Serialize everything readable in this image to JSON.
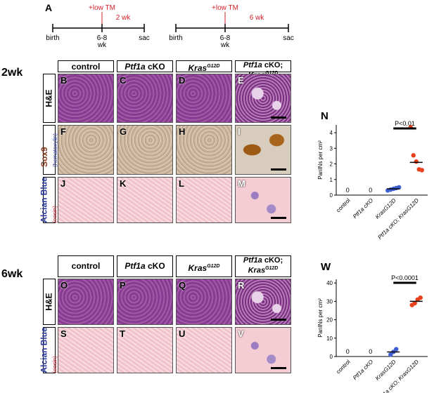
{
  "panel_a": {
    "letter": "A",
    "timelines": [
      {
        "treatment": "+low TM",
        "duration": "2 wk",
        "start": "birth",
        "mid": [
          "6-8",
          "wk"
        ],
        "end": "sac"
      },
      {
        "treatment": "+low TM",
        "duration": "6 wk",
        "start": "birth",
        "mid": [
          "6-8",
          "wk"
        ],
        "end": "sac"
      }
    ]
  },
  "headers": [
    {
      "text": "control"
    },
    {
      "gene": "Ptf1a",
      "rest": "cKO"
    },
    {
      "gene": "Kras",
      "sup": "G12D"
    },
    {
      "gene": "Ptf1a",
      "rest": "cKO;",
      "gene2": "Kras",
      "sup": "G12D"
    }
  ],
  "sections": [
    {
      "label": "2wk",
      "rows": [
        {
          "stain": "H&E",
          "letters": [
            "B",
            "C",
            "D",
            "E"
          ]
        },
        {
          "stain": "Sox9",
          "counterstain": "(hematoxylin)",
          "letters": [
            "F",
            "G",
            "H",
            "I"
          ]
        },
        {
          "stain": "Alcian Blue",
          "counterstain": "(eosin)",
          "letters": [
            "J",
            "K",
            "L",
            "M"
          ]
        }
      ]
    },
    {
      "label": "6wk",
      "rows": [
        {
          "stain": "H&E",
          "letters": [
            "O",
            "P",
            "Q",
            "R"
          ]
        },
        {
          "stain": "Alcian Blue",
          "counterstain": "(eosin)",
          "letters": [
            "S",
            "T",
            "U",
            "V"
          ]
        }
      ]
    }
  ],
  "chart_data": [
    {
      "type": "dot",
      "letter": "N",
      "ylabel": "PanINs per cm²",
      "categories": [
        "control",
        "Ptf1a cKO",
        "KrasG12D",
        "Ptf1a cKO; KrasG12D"
      ],
      "points": [
        [],
        [],
        [
          0.3,
          0.35,
          0.4,
          0.45,
          0.5
        ],
        [
          4.35,
          2.55,
          2.15,
          1.65,
          1.6
        ]
      ],
      "means": [
        0,
        0,
        0.4,
        2.1
      ],
      "value_labels": [
        "0",
        "0",
        null,
        null
      ],
      "colors": [
        "#000000",
        "#000000",
        "#3f5fd0",
        "#e8401c"
      ],
      "ylim": [
        0,
        4.5
      ],
      "yticks": [
        0,
        1,
        2,
        3,
        4
      ],
      "annotation": {
        "text": "P<0.01",
        "from": 2,
        "to": 3
      }
    },
    {
      "type": "dot",
      "letter": "W",
      "ylabel": "PanINs per cm²",
      "categories": [
        "control",
        "Ptf1a cKO",
        "KrasG12D",
        "Ptf1a cKO; KrasG12D"
      ],
      "points": [
        [],
        [],
        [
          1,
          2.5,
          4
        ],
        [
          28,
          29,
          31,
          32
        ]
      ],
      "means": [
        0,
        0,
        2.5,
        30
      ],
      "value_labels": [
        "0",
        "0",
        null,
        null
      ],
      "colors": [
        "#000000",
        "#000000",
        "#3f5fd0",
        "#e8401c"
      ],
      "ylim": [
        0,
        42
      ],
      "yticks": [
        0,
        10,
        20,
        30,
        40
      ],
      "annotation": {
        "text": "P<0.0001",
        "from": 2,
        "to": 3
      }
    }
  ]
}
